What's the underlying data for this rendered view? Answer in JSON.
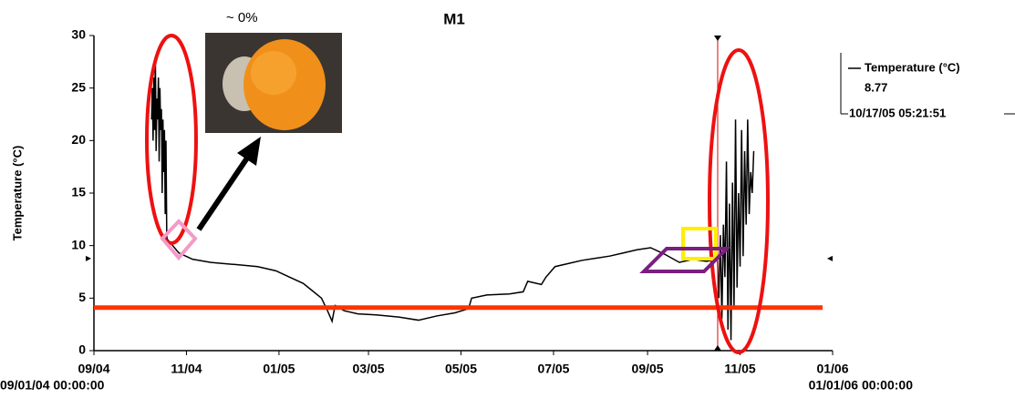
{
  "chart_data": {
    "type": "line",
    "title": "M1",
    "ylabel": "Temperature (°C)",
    "annotation": "~ 0%",
    "x_start_label": "09/01/04 00:00:00",
    "x_end_label": "01/01/06 00:00:00",
    "xlim": [
      "2004-09-01T00:00:00",
      "2006-01-01T00:00:00"
    ],
    "xticks": [
      {
        "value": "2004-09-01T00:00:00",
        "label": "09/04"
      },
      {
        "value": "2004-11-01T00:00:00",
        "label": "11/04"
      },
      {
        "value": "2005-01-01T00:00:00",
        "label": "01/05"
      },
      {
        "value": "2005-03-01T00:00:00",
        "label": "03/05"
      },
      {
        "value": "2005-05-01T00:00:00",
        "label": "05/05"
      },
      {
        "value": "2005-07-01T00:00:00",
        "label": "07/05"
      },
      {
        "value": "2005-09-01T00:00:00",
        "label": "09/05"
      },
      {
        "value": "2005-11-01T00:00:00",
        "label": "11/05"
      },
      {
        "value": "2006-01-01T00:00:00",
        "label": "01/06"
      }
    ],
    "ylim": [
      0,
      30
    ],
    "yticks": [
      0,
      5,
      10,
      15,
      20,
      25,
      30
    ],
    "reference_line": {
      "value": 4.1,
      "color": "#ff3300"
    },
    "cursor": {
      "x": "2005-10-17T05:21:51",
      "label": "10/17/05 05:21:51",
      "value": 8.77,
      "color": "#e03030"
    },
    "x": [
      "2004-10-09T00:00:00",
      "2004-10-09T12:00:00",
      "2004-10-10T00:00:00",
      "2004-10-10T12:00:00",
      "2004-10-11T00:00:00",
      "2004-10-11T12:00:00",
      "2004-10-12T00:00:00",
      "2004-10-12T12:00:00",
      "2004-10-13T00:00:00",
      "2004-10-13T12:00:00",
      "2004-10-14T00:00:00",
      "2004-10-14T12:00:00",
      "2004-10-15T00:00:00",
      "2004-10-15T12:00:00",
      "2004-10-16T00:00:00",
      "2004-10-16T12:00:00",
      "2004-10-17T00:00:00",
      "2004-10-17T12:00:00",
      "2004-10-18T00:00:00",
      "2004-10-18T12:00:00",
      "2004-10-19T00:00:00",
      "2004-10-19T12:00:00",
      "2004-10-20T00:00:00",
      "2004-10-27T00:00:00",
      "2004-11-05T00:00:00",
      "2004-11-17T00:00:00",
      "2004-12-03T00:00:00",
      "2004-12-18T00:00:00",
      "2004-12-30T00:00:00",
      "2005-01-08T00:00:00",
      "2005-01-17T00:00:00",
      "2005-01-23T00:00:00",
      "2005-01-29T00:00:00",
      "2005-02-02T00:00:00",
      "2005-02-05T00:00:00",
      "2005-02-07T00:00:00",
      "2005-02-13T00:00:00",
      "2005-02-22T00:00:00",
      "2005-03-06T00:00:00",
      "2005-03-21T00:00:00",
      "2005-04-03T00:00:00",
      "2005-04-15T00:00:00",
      "2005-04-27T00:00:00",
      "2005-05-06T00:00:00",
      "2005-05-08T00:00:00",
      "2005-05-18T00:00:00",
      "2005-06-02T00:00:00",
      "2005-06-11T00:00:00",
      "2005-06-14T00:00:00",
      "2005-06-23T00:00:00",
      "2005-06-26T00:00:00",
      "2005-07-02T00:00:00",
      "2005-07-11T00:00:00",
      "2005-07-20T00:00:00",
      "2005-07-29T00:00:00",
      "2005-08-07T00:00:00",
      "2005-08-16T00:00:00",
      "2005-08-25T00:00:00",
      "2005-09-03T00:00:00",
      "2005-09-12T00:00:00",
      "2005-09-22T00:00:00",
      "2005-10-01T00:00:00",
      "2005-10-10T00:00:00",
      "2005-10-16T00:00:00",
      "2005-10-17T00:00:00",
      "2005-10-18T00:00:00",
      "2005-10-19T00:00:00",
      "2005-10-20T00:00:00",
      "2005-10-21T00:00:00",
      "2005-10-22T00:00:00",
      "2005-10-23T00:00:00",
      "2005-10-24T00:00:00",
      "2005-10-25T00:00:00",
      "2005-10-26T00:00:00",
      "2005-10-27T00:00:00",
      "2005-10-28T00:00:00",
      "2005-10-29T00:00:00",
      "2005-10-30T00:00:00",
      "2005-10-31T00:00:00",
      "2005-11-01T00:00:00",
      "2005-11-02T00:00:00",
      "2005-11-03T00:00:00",
      "2005-11-04T00:00:00",
      "2005-11-05T00:00:00",
      "2005-11-06T00:00:00",
      "2005-11-07T00:00:00",
      "2005-11-08T00:00:00",
      "2005-11-09T00:00:00",
      "2005-11-10T00:00:00"
    ],
    "series": [
      {
        "name": "Temperature (°C)",
        "color": "#000000",
        "values": [
          22,
          25,
          20,
          26,
          21,
          28,
          19,
          24,
          22,
          26,
          18,
          25,
          21,
          23,
          15,
          22,
          17,
          21,
          13,
          20,
          11,
          10,
          10.5,
          9.3,
          8.7,
          8.4,
          8.2,
          8.0,
          7.6,
          7.0,
          6.4,
          5.7,
          5.0,
          3.8,
          2.8,
          4.3,
          3.8,
          3.5,
          3.4,
          3.2,
          2.9,
          3.3,
          3.6,
          4.0,
          5.0,
          5.3,
          5.4,
          5.6,
          6.6,
          6.3,
          7.0,
          8.0,
          8.3,
          8.6,
          8.8,
          9.0,
          9.3,
          9.6,
          9.8,
          9.2,
          8.4,
          8.7,
          8.5,
          8.77,
          9,
          5,
          11,
          3,
          12,
          7,
          18,
          2,
          14,
          1,
          16,
          4,
          22,
          6,
          15,
          8,
          21,
          9,
          19,
          12,
          22,
          13,
          17,
          15,
          19
        ]
      }
    ]
  }
}
